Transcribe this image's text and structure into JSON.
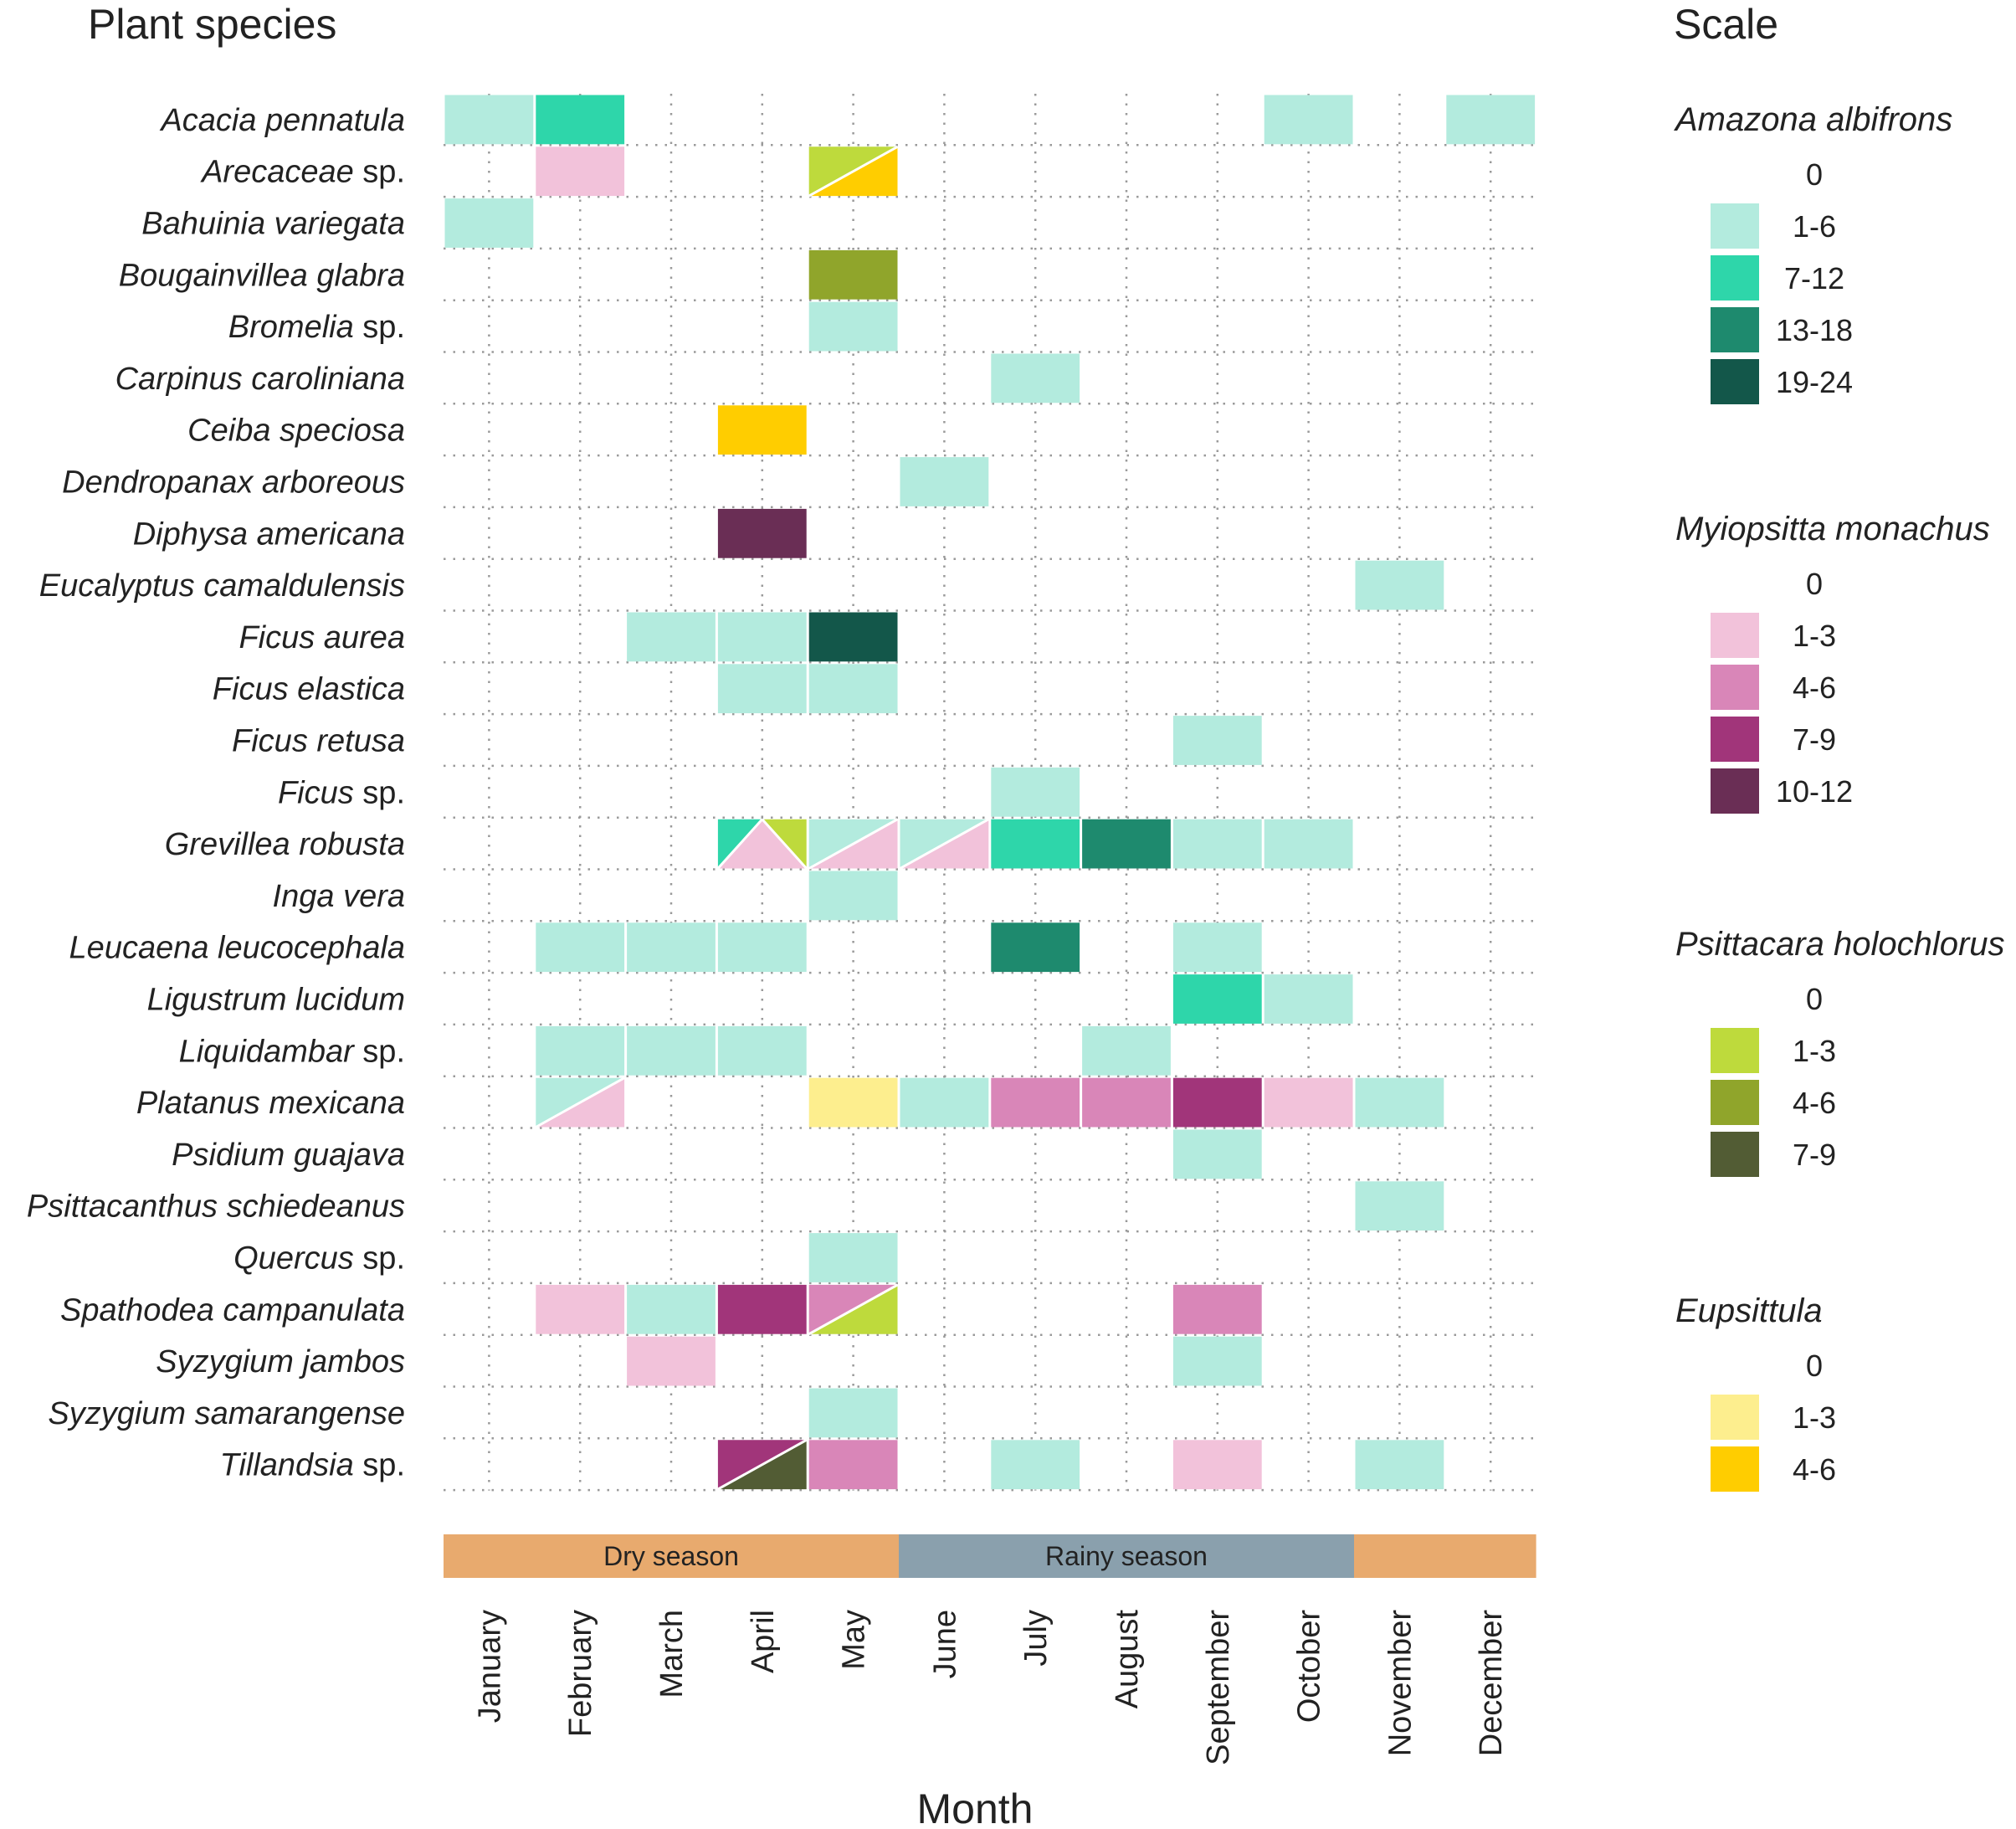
{
  "chart_data": {
    "type": "heatmap",
    "title": "",
    "ylabel": "Plant species",
    "xlabel": "Month",
    "scale_title": "Scale",
    "months": [
      "January",
      "February",
      "March",
      "April",
      "May",
      "June",
      "July",
      "August",
      "September",
      "October",
      "November",
      "December"
    ],
    "species": [
      {
        "name": "Acacia pennatula",
        "suffix": ""
      },
      {
        "name": "Arecaceae",
        "suffix": " sp."
      },
      {
        "name": "Bahuinia variegata",
        "suffix": ""
      },
      {
        "name": "Bougainvillea glabra",
        "suffix": ""
      },
      {
        "name": "Bromelia",
        "suffix": " sp."
      },
      {
        "name": "Carpinus caroliniana",
        "suffix": ""
      },
      {
        "name": "Ceiba speciosa",
        "suffix": ""
      },
      {
        "name": "Dendropanax arboreous",
        "suffix": ""
      },
      {
        "name": "Diphysa americana",
        "suffix": ""
      },
      {
        "name": "Eucalyptus camaldulensis",
        "suffix": ""
      },
      {
        "name": "Ficus aurea",
        "suffix": ""
      },
      {
        "name": "Ficus elastica",
        "suffix": ""
      },
      {
        "name": "Ficus retusa",
        "suffix": ""
      },
      {
        "name": "Ficus",
        "suffix": " sp."
      },
      {
        "name": "Grevillea robusta",
        "suffix": ""
      },
      {
        "name": "Inga vera",
        "suffix": ""
      },
      {
        "name": "Leucaena leucocephala",
        "suffix": ""
      },
      {
        "name": "Ligustrum lucidum",
        "suffix": ""
      },
      {
        "name": "Liquidambar",
        "suffix": " sp."
      },
      {
        "name": "Platanus mexicana",
        "suffix": ""
      },
      {
        "name": "Psidium guajava",
        "suffix": ""
      },
      {
        "name": "Psittacanthus schiedeanus",
        "suffix": ""
      },
      {
        "name": "Quercus",
        "suffix": " sp."
      },
      {
        "name": "Spathodea campanulata",
        "suffix": ""
      },
      {
        "name": "Syzygium jambos",
        "suffix": ""
      },
      {
        "name": "Syzygium samarangense",
        "suffix": ""
      },
      {
        "name": "Tillandsia",
        "suffix": " sp."
      }
    ],
    "seasons": [
      {
        "label": "Dry season",
        "start": 1,
        "end": 5,
        "color": "#E8AA6E"
      },
      {
        "label": "Rainy season",
        "start": 6,
        "end": 10,
        "color": "#8AA0AD"
      },
      {
        "label": "",
        "start": 11,
        "end": 12,
        "color": "#E8AA6E"
      }
    ],
    "scales": [
      {
        "species": "Amazona albifrons",
        "key": "A",
        "bins": [
          {
            "label": "0",
            "color": "#FFFFFF"
          },
          {
            "label": "1-6",
            "color": "#B3EBDE"
          },
          {
            "label": "7-12",
            "color": "#2ED6AA"
          },
          {
            "label": "13-18",
            "color": "#1E8A6E"
          },
          {
            "label": "19-24",
            "color": "#13574A"
          }
        ]
      },
      {
        "species": "Myiopsitta monachus",
        "key": "M",
        "bins": [
          {
            "label": "0",
            "color": "#FFFFFF"
          },
          {
            "label": "1-3",
            "color": "#F2C2DA"
          },
          {
            "label": "4-6",
            "color": "#D986B8"
          },
          {
            "label": "7-9",
            "color": "#A1357A"
          },
          {
            "label": "10-12",
            "color": "#6A2E55"
          }
        ]
      },
      {
        "species": "Psittacara holochlorus",
        "key": "P",
        "bins": [
          {
            "label": "0",
            "color": "#FFFFFF"
          },
          {
            "label": "1-3",
            "color": "#BEDA3C"
          },
          {
            "label": "4-6",
            "color": "#90A52B"
          },
          {
            "label": "7-9",
            "color": "#525C34"
          }
        ]
      },
      {
        "species": "Eupsittula",
        "key": "E",
        "bins": [
          {
            "label": "0",
            "color": "#FFFFFF"
          },
          {
            "label": "1-3",
            "color": "#FDEE8E"
          },
          {
            "label": "4-6",
            "color": "#FFCD00"
          }
        ]
      }
    ],
    "cells": [
      {
        "species": 0,
        "month": 1,
        "obs": [
          {
            "scale": "A",
            "bin": 1
          }
        ]
      },
      {
        "species": 0,
        "month": 2,
        "obs": [
          {
            "scale": "A",
            "bin": 2
          }
        ]
      },
      {
        "species": 0,
        "month": 10,
        "obs": [
          {
            "scale": "A",
            "bin": 1
          }
        ]
      },
      {
        "species": 0,
        "month": 12,
        "obs": [
          {
            "scale": "A",
            "bin": 1
          }
        ]
      },
      {
        "species": 1,
        "month": 2,
        "obs": [
          {
            "scale": "M",
            "bin": 1
          }
        ]
      },
      {
        "species": 1,
        "month": 5,
        "obs": [
          {
            "scale": "P",
            "bin": 1
          },
          {
            "scale": "E",
            "bin": 2
          }
        ]
      },
      {
        "species": 2,
        "month": 1,
        "obs": [
          {
            "scale": "A",
            "bin": 1
          }
        ]
      },
      {
        "species": 3,
        "month": 5,
        "obs": [
          {
            "scale": "P",
            "bin": 2
          }
        ]
      },
      {
        "species": 4,
        "month": 5,
        "obs": [
          {
            "scale": "A",
            "bin": 1
          }
        ]
      },
      {
        "species": 5,
        "month": 7,
        "obs": [
          {
            "scale": "A",
            "bin": 1
          }
        ]
      },
      {
        "species": 6,
        "month": 4,
        "obs": [
          {
            "scale": "E",
            "bin": 2
          }
        ]
      },
      {
        "species": 7,
        "month": 6,
        "obs": [
          {
            "scale": "A",
            "bin": 1
          }
        ]
      },
      {
        "species": 8,
        "month": 4,
        "obs": [
          {
            "scale": "M",
            "bin": 4
          }
        ]
      },
      {
        "species": 9,
        "month": 11,
        "obs": [
          {
            "scale": "A",
            "bin": 1
          }
        ]
      },
      {
        "species": 10,
        "month": 3,
        "obs": [
          {
            "scale": "A",
            "bin": 1
          }
        ]
      },
      {
        "species": 10,
        "month": 4,
        "obs": [
          {
            "scale": "A",
            "bin": 1
          }
        ]
      },
      {
        "species": 10,
        "month": 5,
        "obs": [
          {
            "scale": "A",
            "bin": 4
          }
        ]
      },
      {
        "species": 11,
        "month": 4,
        "obs": [
          {
            "scale": "A",
            "bin": 1
          }
        ]
      },
      {
        "species": 11,
        "month": 5,
        "obs": [
          {
            "scale": "A",
            "bin": 1
          }
        ]
      },
      {
        "species": 12,
        "month": 9,
        "obs": [
          {
            "scale": "A",
            "bin": 1
          }
        ]
      },
      {
        "species": 13,
        "month": 7,
        "obs": [
          {
            "scale": "A",
            "bin": 1
          }
        ]
      },
      {
        "species": 14,
        "month": 4,
        "obs": [
          {
            "scale": "A",
            "bin": 2
          },
          {
            "scale": "M",
            "bin": 1
          },
          {
            "scale": "P",
            "bin": 1
          }
        ]
      },
      {
        "species": 14,
        "month": 5,
        "obs": [
          {
            "scale": "A",
            "bin": 1
          },
          {
            "scale": "M",
            "bin": 1
          }
        ]
      },
      {
        "species": 14,
        "month": 6,
        "obs": [
          {
            "scale": "A",
            "bin": 1
          },
          {
            "scale": "M",
            "bin": 1
          }
        ]
      },
      {
        "species": 14,
        "month": 7,
        "obs": [
          {
            "scale": "A",
            "bin": 2
          }
        ]
      },
      {
        "species": 14,
        "month": 8,
        "obs": [
          {
            "scale": "A",
            "bin": 3
          }
        ]
      },
      {
        "species": 14,
        "month": 9,
        "obs": [
          {
            "scale": "A",
            "bin": 1
          }
        ]
      },
      {
        "species": 14,
        "month": 10,
        "obs": [
          {
            "scale": "A",
            "bin": 1
          }
        ]
      },
      {
        "species": 15,
        "month": 5,
        "obs": [
          {
            "scale": "A",
            "bin": 1
          }
        ]
      },
      {
        "species": 16,
        "month": 2,
        "obs": [
          {
            "scale": "A",
            "bin": 1
          }
        ]
      },
      {
        "species": 16,
        "month": 3,
        "obs": [
          {
            "scale": "A",
            "bin": 1
          }
        ]
      },
      {
        "species": 16,
        "month": 4,
        "obs": [
          {
            "scale": "A",
            "bin": 1
          }
        ]
      },
      {
        "species": 16,
        "month": 7,
        "obs": [
          {
            "scale": "A",
            "bin": 3
          }
        ]
      },
      {
        "species": 16,
        "month": 9,
        "obs": [
          {
            "scale": "A",
            "bin": 1
          }
        ]
      },
      {
        "species": 17,
        "month": 9,
        "obs": [
          {
            "scale": "A",
            "bin": 2
          }
        ]
      },
      {
        "species": 17,
        "month": 10,
        "obs": [
          {
            "scale": "A",
            "bin": 1
          }
        ]
      },
      {
        "species": 18,
        "month": 2,
        "obs": [
          {
            "scale": "A",
            "bin": 1
          }
        ]
      },
      {
        "species": 18,
        "month": 3,
        "obs": [
          {
            "scale": "A",
            "bin": 1
          }
        ]
      },
      {
        "species": 18,
        "month": 4,
        "obs": [
          {
            "scale": "A",
            "bin": 1
          }
        ]
      },
      {
        "species": 18,
        "month": 8,
        "obs": [
          {
            "scale": "A",
            "bin": 1
          }
        ]
      },
      {
        "species": 19,
        "month": 2,
        "obs": [
          {
            "scale": "A",
            "bin": 1
          },
          {
            "scale": "M",
            "bin": 1
          }
        ]
      },
      {
        "species": 19,
        "month": 5,
        "obs": [
          {
            "scale": "E",
            "bin": 1
          }
        ]
      },
      {
        "species": 19,
        "month": 6,
        "obs": [
          {
            "scale": "A",
            "bin": 1
          }
        ]
      },
      {
        "species": 19,
        "month": 7,
        "obs": [
          {
            "scale": "M",
            "bin": 2
          }
        ]
      },
      {
        "species": 19,
        "month": 8,
        "obs": [
          {
            "scale": "M",
            "bin": 2
          }
        ]
      },
      {
        "species": 19,
        "month": 9,
        "obs": [
          {
            "scale": "M",
            "bin": 3
          }
        ]
      },
      {
        "species": 19,
        "month": 10,
        "obs": [
          {
            "scale": "M",
            "bin": 1
          }
        ]
      },
      {
        "species": 19,
        "month": 11,
        "obs": [
          {
            "scale": "A",
            "bin": 1
          }
        ]
      },
      {
        "species": 20,
        "month": 9,
        "obs": [
          {
            "scale": "A",
            "bin": 1
          }
        ]
      },
      {
        "species": 21,
        "month": 11,
        "obs": [
          {
            "scale": "A",
            "bin": 1
          }
        ]
      },
      {
        "species": 22,
        "month": 5,
        "obs": [
          {
            "scale": "A",
            "bin": 1
          }
        ]
      },
      {
        "species": 23,
        "month": 2,
        "obs": [
          {
            "scale": "M",
            "bin": 1
          }
        ]
      },
      {
        "species": 23,
        "month": 3,
        "obs": [
          {
            "scale": "A",
            "bin": 1
          }
        ]
      },
      {
        "species": 23,
        "month": 4,
        "obs": [
          {
            "scale": "M",
            "bin": 3
          }
        ]
      },
      {
        "species": 23,
        "month": 5,
        "obs": [
          {
            "scale": "M",
            "bin": 2
          },
          {
            "scale": "P",
            "bin": 1
          }
        ]
      },
      {
        "species": 23,
        "month": 9,
        "obs": [
          {
            "scale": "M",
            "bin": 2
          }
        ]
      },
      {
        "species": 24,
        "month": 3,
        "obs": [
          {
            "scale": "M",
            "bin": 1
          }
        ]
      },
      {
        "species": 24,
        "month": 9,
        "obs": [
          {
            "scale": "A",
            "bin": 1
          }
        ]
      },
      {
        "species": 25,
        "month": 5,
        "obs": [
          {
            "scale": "A",
            "bin": 1
          }
        ]
      },
      {
        "species": 26,
        "month": 4,
        "obs": [
          {
            "scale": "M",
            "bin": 3
          },
          {
            "scale": "P",
            "bin": 3
          }
        ]
      },
      {
        "species": 26,
        "month": 5,
        "obs": [
          {
            "scale": "M",
            "bin": 2
          }
        ]
      },
      {
        "species": 26,
        "month": 7,
        "obs": [
          {
            "scale": "A",
            "bin": 1
          }
        ]
      },
      {
        "species": 26,
        "month": 9,
        "obs": [
          {
            "scale": "M",
            "bin": 1
          }
        ]
      },
      {
        "species": 26,
        "month": 11,
        "obs": [
          {
            "scale": "A",
            "bin": 1
          }
        ]
      }
    ]
  }
}
